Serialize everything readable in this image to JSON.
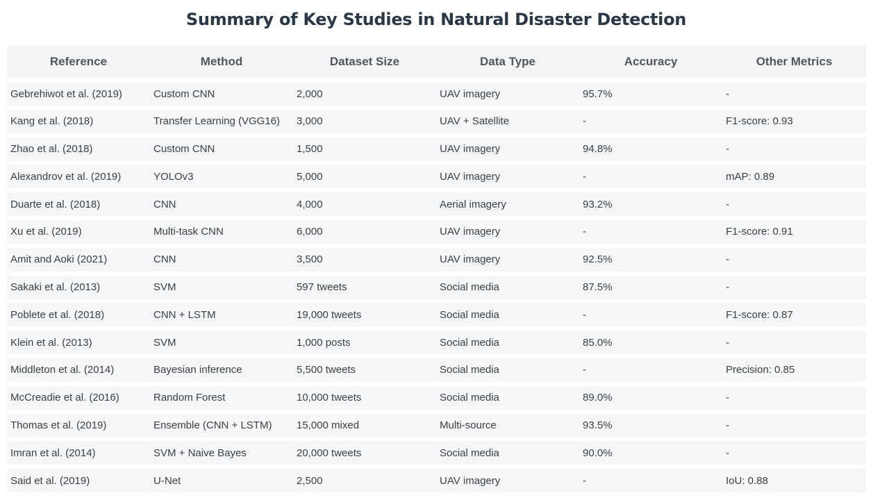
{
  "title": "Summary of Key Studies in Natural Disaster Detection",
  "columns": [
    "Reference",
    "Method",
    "Dataset Size",
    "Data Type",
    "Accuracy",
    "Other Metrics"
  ],
  "rows": [
    [
      "Gebrehiwot et al. (2019)",
      "Custom CNN",
      "2,000",
      "UAV imagery",
      "95.7%",
      "-"
    ],
    [
      "Kang et al. (2018)",
      "Transfer Learning (VGG16)",
      "3,000",
      "UAV + Satellite",
      "-",
      "F1-score: 0.93"
    ],
    [
      "Zhao et al. (2018)",
      "Custom CNN",
      "1,500",
      "UAV imagery",
      "94.8%",
      "-"
    ],
    [
      "Alexandrov et al. (2019)",
      "YOLOv3",
      "5,000",
      "UAV imagery",
      "-",
      "mAP: 0.89"
    ],
    [
      "Duarte et al. (2018)",
      "CNN",
      "4,000",
      "Aerial imagery",
      "93.2%",
      "-"
    ],
    [
      "Xu et al. (2019)",
      "Multi-task CNN",
      "6,000",
      "UAV imagery",
      "-",
      "F1-score: 0.91"
    ],
    [
      "Amit and Aoki (2021)",
      "CNN",
      "3,500",
      "UAV imagery",
      "92.5%",
      "-"
    ],
    [
      "Sakaki et al. (2013)",
      "SVM",
      "597 tweets",
      "Social media",
      "87.5%",
      "-"
    ],
    [
      "Poblete et al. (2018)",
      "CNN + LSTM",
      "19,000 tweets",
      "Social media",
      "-",
      "F1-score: 0.87"
    ],
    [
      "Klein et al. (2013)",
      "SVM",
      "1,000 posts",
      "Social media",
      "85.0%",
      "-"
    ],
    [
      "Middleton et al. (2014)",
      "Bayesian inference",
      "5,500 tweets",
      "Social media",
      "-",
      "Precision: 0.85"
    ],
    [
      "McCreadie et al. (2016)",
      "Random Forest",
      "10,000 tweets",
      "Social media",
      "89.0%",
      "-"
    ],
    [
      "Thomas et al. (2019)",
      "Ensemble (CNN + LSTM)",
      "15,000 mixed",
      "Multi-source",
      "93.5%",
      "-"
    ],
    [
      "Imran et al. (2014)",
      "SVM + Naive Bayes",
      "20,000 tweets",
      "Social media",
      "90.0%",
      "-"
    ],
    [
      "Said et al. (2019)",
      "U-Net",
      "2,500",
      "UAV imagery",
      "-",
      "IoU: 0.88"
    ]
  ]
}
